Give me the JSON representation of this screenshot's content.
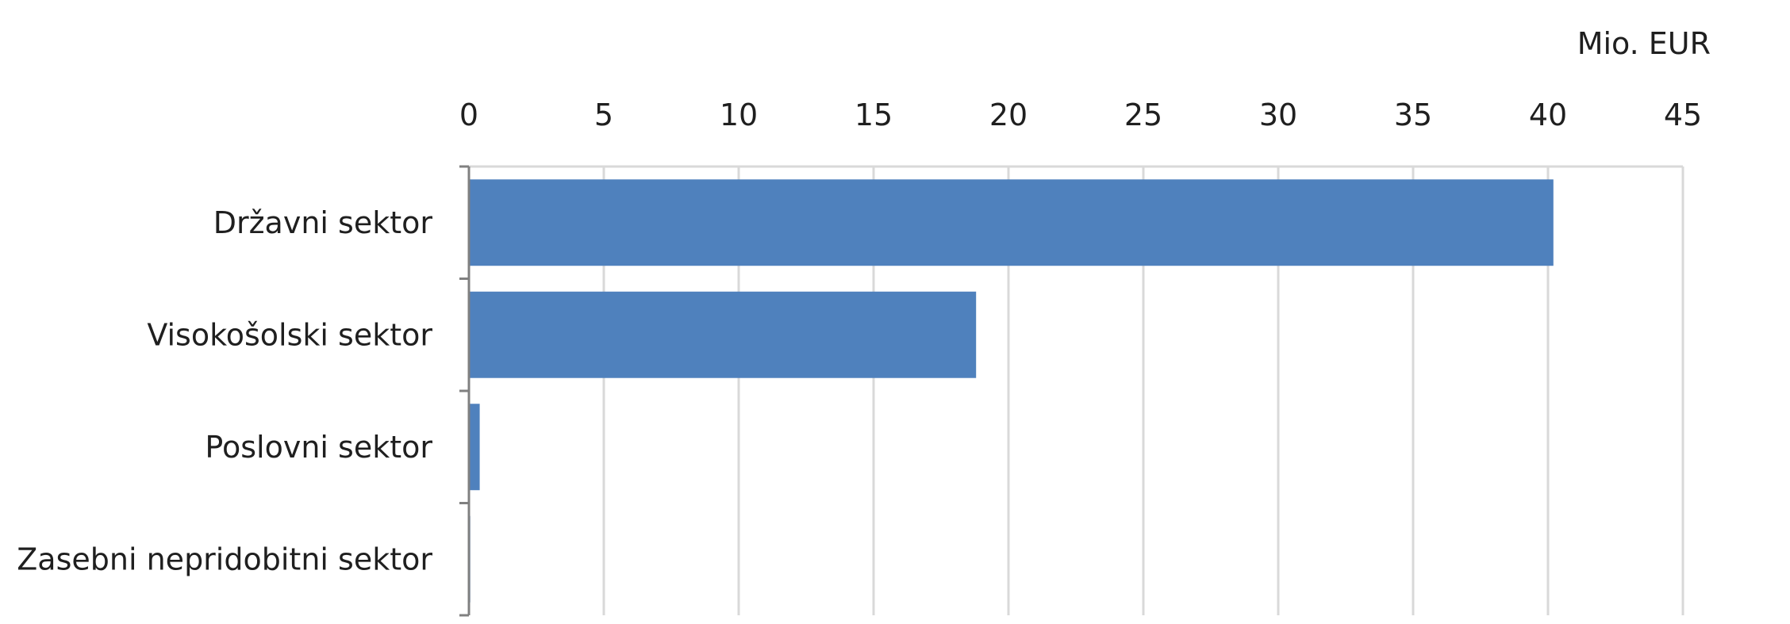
{
  "chart_data": {
    "type": "bar",
    "orientation": "horizontal",
    "categories": [
      "Državni sektor",
      "Visokošolski sektor",
      "Poslovni sektor",
      "Zasebni nepridobitni sektor"
    ],
    "values": [
      40.2,
      18.8,
      0.4,
      0.05
    ],
    "unit_label": "Mio. EUR",
    "xlim": [
      0,
      45
    ],
    "x_ticks": [
      "0",
      "5",
      "10",
      "15",
      "20",
      "25",
      "30",
      "35",
      "40",
      "45"
    ],
    "x_axis_position": "top",
    "grid": true,
    "bar_color": "#4f81bd",
    "grid_color": "#d9d9d9",
    "axis_color": "#808080"
  }
}
